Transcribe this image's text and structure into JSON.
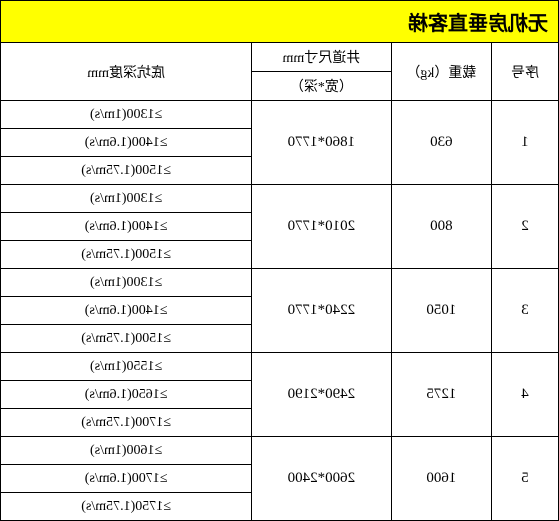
{
  "title": "无机房垂直客梯",
  "headers": {
    "seq": "序号",
    "load": "载重（kg）",
    "dim_top": "井道尺寸mm",
    "dim_sub": "（宽*深）",
    "depth": "底坑深度mm"
  },
  "rows": [
    {
      "seq": "1",
      "load": "630",
      "dim": "1860*1770",
      "depths": [
        "≥1300(1m/s)",
        "≥1400(1.6m/s)",
        "≥1500(1.75m/s)"
      ]
    },
    {
      "seq": "2",
      "load": "800",
      "dim": "2010*1770",
      "depths": [
        "≥1300(1m/s)",
        "≥1400(1.6m/s)",
        "≥1500(1.75m/s)"
      ]
    },
    {
      "seq": "3",
      "load": "1050",
      "dim": "2240*1770",
      "depths": [
        "≥1300(1m/s)",
        "≥1400(1.6m/s)",
        "≥1500(1.75m/s)"
      ]
    },
    {
      "seq": "4",
      "load": "1275",
      "dim": "2490*2190",
      "depths": [
        "≥1550(1m/s)",
        "≥1650(1.6m/s)",
        "≥1700(1.75m/s)"
      ]
    },
    {
      "seq": "5",
      "load": "1600",
      "dim": "2600*2400",
      "depths": [
        "≥1600(1m/s)",
        "≥1700(1.6m/s)",
        "≥1750(1.75m/s)"
      ]
    }
  ],
  "styling": {
    "title_bg": "#ffff00",
    "border_color": "#000000",
    "bg_color": "#ffffff",
    "font_family": "SimSun"
  }
}
